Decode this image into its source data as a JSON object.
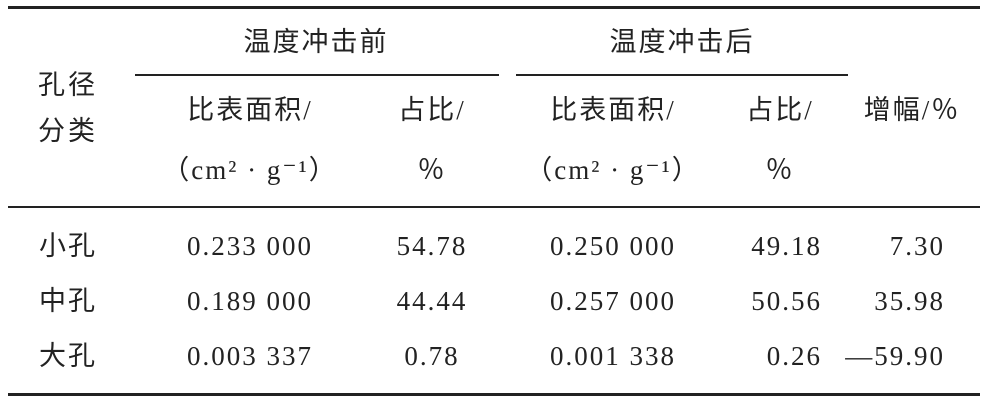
{
  "table": {
    "header": {
      "row_label": "孔径分类",
      "groups": [
        "温度冲击前",
        "温度冲击后"
      ],
      "columns": [
        {
          "name": "比表面积/",
          "unit": "（cm² · g⁻¹）"
        },
        {
          "name": "占比/",
          "unit": "％"
        },
        {
          "name": "比表面积/",
          "unit": "（cm² · g⁻¹）"
        },
        {
          "name": "占比/",
          "unit": "％"
        }
      ],
      "increase": "增幅/％"
    },
    "rows": [
      [
        "小孔",
        "0.233 000",
        "54.78",
        "0.250 000",
        "49.18",
        "7.30"
      ],
      [
        "中孔",
        "0.189 000",
        "44.44",
        "0.257 000",
        "50.56",
        "35.98"
      ],
      [
        "大孔",
        "0.003 337",
        "0.78",
        "0.001 338",
        "0.26",
        "—59.90"
      ]
    ]
  }
}
